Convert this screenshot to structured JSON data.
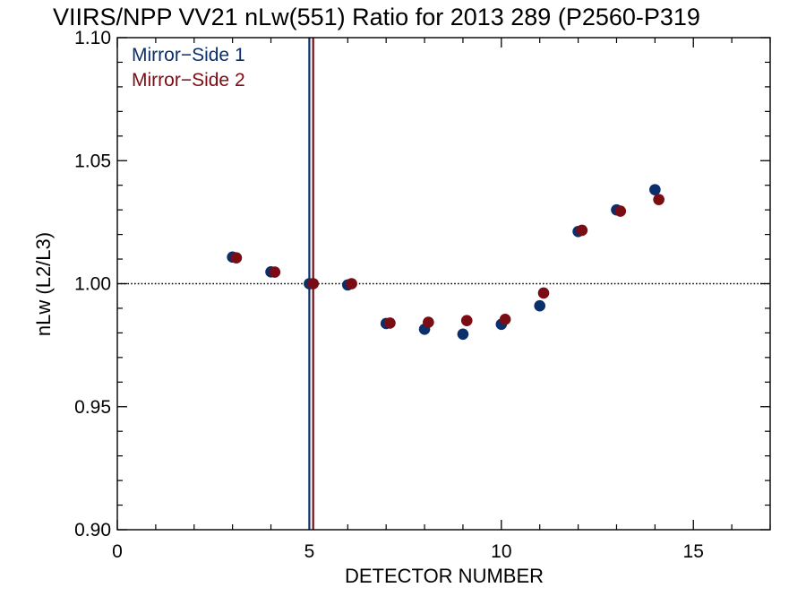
{
  "chart_data": {
    "type": "scatter",
    "title": "VIIRS/NPP VV21 nLw(551) Ratio for 2013 289 (P2560-P319",
    "xlabel": "DETECTOR NUMBER",
    "ylabel": "nLw (L2/L3)",
    "xlim": [
      0,
      17
    ],
    "ylim": [
      0.9,
      1.1
    ],
    "x_ticks": [
      0,
      5,
      10,
      15
    ],
    "x_tick_labels": [
      "0",
      "5",
      "10",
      "15"
    ],
    "x_minor_step": 1,
    "y_ticks": [
      0.9,
      0.95,
      1.0,
      1.05,
      1.1
    ],
    "y_tick_labels": [
      "0.90",
      "0.95",
      "1.00",
      "1.05",
      "1.10"
    ],
    "y_minor_step": 0.01,
    "grid": false,
    "legend_position": "top-left",
    "reference_line": {
      "y": 1.0,
      "style": "dotted",
      "color": "#000000"
    },
    "series": [
      {
        "name": "Mirror−Side 1",
        "color": "#0b2f6b",
        "marker": "circle",
        "vertical_line_x": 5,
        "x": [
          3,
          4,
          5,
          6,
          7,
          8,
          9,
          10,
          11,
          12,
          13,
          14
        ],
        "y": [
          1.0108,
          1.0048,
          1.0,
          0.9995,
          0.9838,
          0.9815,
          0.9795,
          0.9835,
          0.991,
          1.0212,
          1.03,
          1.0382
        ]
      },
      {
        "name": "Mirror−Side 2",
        "color": "#7a0c14",
        "marker": "circle",
        "vertical_line_x": 5.1,
        "x": [
          3.1,
          4.1,
          5.1,
          6.1,
          7.1,
          8.1,
          9.1,
          10.1,
          11.1,
          12.1,
          13.1,
          14.1
        ],
        "y": [
          1.0105,
          1.0047,
          1.0,
          1.0,
          0.984,
          0.9843,
          0.985,
          0.9855,
          0.9962,
          1.0217,
          1.0295,
          1.0342
        ]
      }
    ]
  }
}
